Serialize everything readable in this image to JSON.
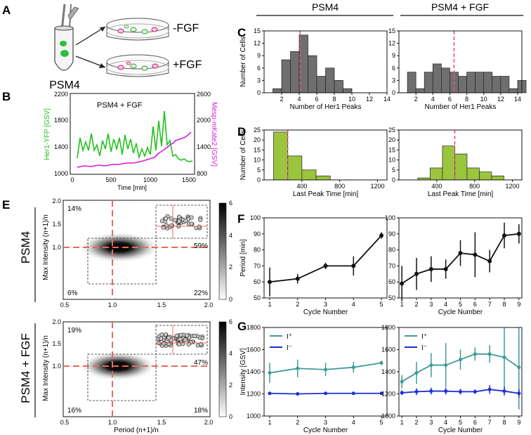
{
  "panel_labels": [
    "A",
    "B",
    "C",
    "D",
    "E",
    "F",
    "G"
  ],
  "column_headers": {
    "left": "PSM4",
    "right": "PSM4 + FGF"
  },
  "panel_a": {
    "tube_label": "PSM4",
    "dish_top_label": "-FGF",
    "dish_bottom_label": "+FGF"
  },
  "colors": {
    "gray_bar": "#6f6f6f",
    "green_bar": "#9bc53d",
    "her1_line": "#22c11e",
    "mesp_line": "#d81bd8",
    "median_line": "#e5508f",
    "e_dashed": "#e86a55",
    "teal": "#3f9a98",
    "blue": "#1a2fd6",
    "black": "#111111"
  },
  "panel_b": {
    "title": "PSM4 + FGF",
    "xlabel": "Time [min]",
    "ylabel_left": "Her1-YFP [GSV]",
    "ylabel_right": "Mesp-mKate2 [GSV]",
    "xticks": [
      "0",
      "500",
      "1000",
      "1500"
    ],
    "yticks_left": [
      "1000",
      "1400",
      "1800",
      "2200"
    ],
    "yticks_right": [
      "800",
      "1400",
      "2000",
      "2600"
    ]
  },
  "panel_e": {
    "xlabel": "Period (n+1)/n",
    "ylabel": "Max Intensity (n+1)/n",
    "row_labels": [
      "PSM4",
      "PSM4 + FGF"
    ],
    "xticks": [
      "0.5",
      "1.0",
      "1.5",
      "2.0"
    ],
    "yticks": [
      "1.0",
      "1.5",
      "2.0"
    ],
    "colorbar_ticks": [
      "0",
      "2",
      "4",
      "6"
    ],
    "top_quadrants": {
      "tl": "14%",
      "tr": "59%",
      "bl": "6%",
      "br": "22%"
    },
    "bottom_quadrants": {
      "tl": "19%",
      "tr": "47%",
      "bl": "16%",
      "br": "18%"
    }
  },
  "chart_data": [
    {
      "id": "C-left",
      "type": "bar",
      "title": "PSM4",
      "xlabel": "Number of Her1 Peaks",
      "ylabel": "Number of Cells",
      "bin_start": 1,
      "bin_width": 1,
      "values": [
        1,
        8,
        10,
        14,
        9,
        4,
        6,
        3,
        1,
        0,
        0,
        0,
        0
      ],
      "median": 4.1,
      "xlim": [
        0,
        14
      ],
      "ylim": [
        0,
        15
      ],
      "xticks": [
        "2",
        "4",
        "6",
        "8",
        "10",
        "12",
        "14"
      ],
      "yticks": [
        "0",
        "3",
        "6",
        "9",
        "12",
        "15"
      ]
    },
    {
      "id": "C-right",
      "type": "bar",
      "title": "PSM4 + FGF",
      "xlabel": "Number of Her1 Peaks",
      "ylabel": "",
      "bin_start": 1,
      "bin_width": 1,
      "values": [
        5,
        1,
        5,
        7,
        6,
        5,
        4,
        5,
        5,
        5,
        4,
        4,
        1,
        3
      ],
      "median": 6.5,
      "xlim": [
        0,
        14.5
      ],
      "ylim": [
        0,
        15
      ],
      "xticks": [
        "2",
        "4",
        "6",
        "8",
        "10",
        "12",
        "14"
      ],
      "yticks": [
        "0",
        "3",
        "6",
        "9",
        "12",
        "15"
      ]
    },
    {
      "id": "D-left",
      "type": "bar",
      "xlabel": "Last Peak Time [min]",
      "ylabel": "Number of Cells",
      "bin_start": 100,
      "bin_width": 150,
      "values": [
        24,
        12,
        5,
        2
      ],
      "median": 250,
      "xlim": [
        0,
        1300
      ],
      "ylim": [
        0,
        25
      ],
      "xticks": [
        "400",
        "800",
        "1200"
      ],
      "yticks": [
        "0",
        "5",
        "10",
        "15",
        "20",
        "25"
      ]
    },
    {
      "id": "D-right",
      "type": "bar",
      "xlabel": "Last Peak Time [min]",
      "ylabel": "",
      "bin_start": 200,
      "bin_width": 130,
      "values": [
        1,
        6,
        17,
        13,
        6,
        4,
        2
      ],
      "median": 590,
      "xlim": [
        0,
        1300
      ],
      "ylim": [
        0,
        25
      ],
      "xticks": [
        "400",
        "800",
        "1200"
      ],
      "yticks": [
        "0",
        "5",
        "10",
        "15",
        "20",
        "25"
      ]
    },
    {
      "id": "F-left",
      "type": "line",
      "xlabel": "Cycle Number",
      "ylabel": "Period [min]",
      "x": [
        1,
        2,
        3,
        4,
        5
      ],
      "y": [
        60,
        62,
        70,
        70,
        89
      ],
      "yerr": [
        9,
        3,
        2,
        6,
        2
      ],
      "xlim": [
        0.8,
        5.2
      ],
      "ylim": [
        50,
        100
      ],
      "xticks": [
        "1",
        "2",
        "3",
        "4",
        "5"
      ],
      "yticks": [
        "50",
        "60",
        "70",
        "80",
        "90",
        "100"
      ]
    },
    {
      "id": "F-right",
      "type": "line",
      "xlabel": "Cycle Number",
      "ylabel": "",
      "x": [
        1,
        2,
        3,
        4,
        5,
        6,
        7,
        8,
        9
      ],
      "y": [
        59,
        65,
        68,
        68,
        78,
        77,
        73,
        89,
        90
      ],
      "yerr": [
        11,
        10,
        8,
        6,
        8,
        14,
        7,
        8,
        6
      ],
      "xlim": [
        0.8,
        9.2
      ],
      "ylim": [
        50,
        100
      ],
      "xticks": [
        "1",
        "2",
        "3",
        "4",
        "5",
        "6",
        "7",
        "8",
        "9"
      ],
      "yticks": [
        "50",
        "60",
        "70",
        "80",
        "90",
        "100"
      ]
    },
    {
      "id": "G-left",
      "type": "line",
      "xlabel": "Cycle Number",
      "ylabel": "Intensity [GSV]",
      "x": [
        1,
        2,
        3,
        4,
        5
      ],
      "series": [
        {
          "name": "I⁺",
          "values": [
            1390,
            1430,
            1420,
            1440,
            1480
          ],
          "err": [
            90,
            80,
            60,
            50,
            20
          ]
        },
        {
          "name": "I⁻",
          "values": [
            1205,
            1200,
            1205,
            1205,
            1205
          ],
          "err": [
            10,
            10,
            10,
            10,
            10
          ]
        }
      ],
      "legend": "top-left",
      "xlim": [
        0.8,
        5.2
      ],
      "ylim": [
        1000,
        1800
      ],
      "xticks": [
        "1",
        "2",
        "3",
        "4",
        "5"
      ],
      "yticks": [
        "1000",
        "1200",
        "1400",
        "1600",
        "1800"
      ]
    },
    {
      "id": "G-right",
      "type": "line",
      "xlabel": "Cycle Number",
      "ylabel": "",
      "x": [
        1,
        2,
        3,
        4,
        5,
        6,
        7,
        8,
        9
      ],
      "series": [
        {
          "name": "I⁺",
          "values": [
            1310,
            1390,
            1460,
            1460,
            1510,
            1560,
            1560,
            1530,
            1440
          ],
          "err": [
            60,
            100,
            110,
            200,
            90,
            60,
            80,
            300,
            380
          ]
        },
        {
          "name": "I⁻",
          "values": [
            1210,
            1220,
            1225,
            1225,
            1220,
            1220,
            1240,
            1225,
            1205
          ],
          "err": [
            20,
            30,
            30,
            30,
            25,
            20,
            40,
            40,
            40
          ]
        }
      ],
      "legend": "top-left",
      "xlim": [
        0.8,
        9.2
      ],
      "ylim": [
        1000,
        1800
      ],
      "xticks": [
        "1",
        "2",
        "3",
        "4",
        "5",
        "6",
        "7",
        "8",
        "9"
      ],
      "yticks": [
        "1000",
        "1200",
        "1400",
        "1600",
        "1800"
      ]
    }
  ]
}
